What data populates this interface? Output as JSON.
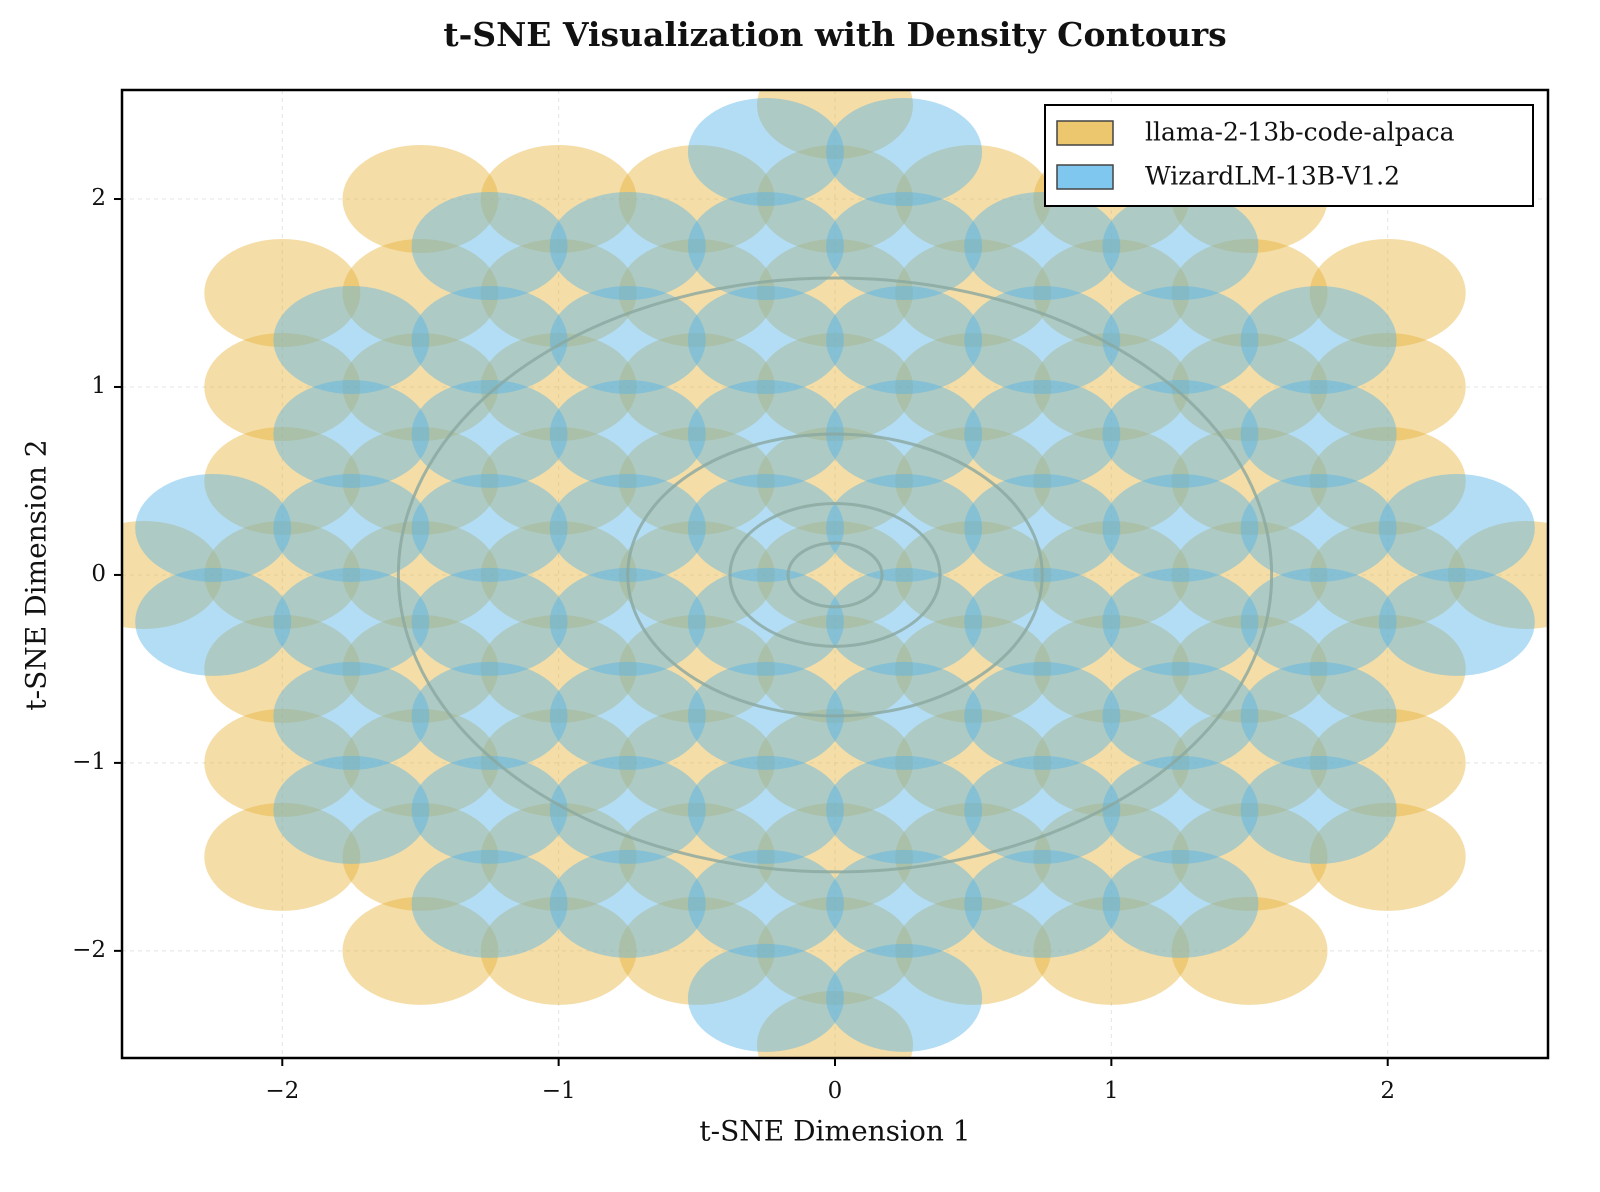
{
  "chart_data": {
    "type": "scatter",
    "title": "t-SNE Visualization with Density Contours",
    "xlabel": "t-SNE Dimension 1",
    "ylabel": "t-SNE Dimension 2",
    "xlim": [
      -2.58,
      2.58
    ],
    "ylim": [
      -2.57,
      2.58
    ],
    "xticks": [
      {
        "value": -2,
        "label": "−2"
      },
      {
        "value": -1,
        "label": "−1"
      },
      0,
      1,
      2
    ],
    "yticks": [
      {
        "value": -2,
        "label": "−2"
      },
      {
        "value": -1,
        "label": "−1"
      },
      0,
      1,
      2
    ],
    "grid": true,
    "legend": "upper right",
    "contour_color": "#8aa8a0",
    "contour_radii": [
      0.17,
      0.38,
      0.75,
      1.58
    ],
    "series": [
      {
        "name": "llama-2-13b-code-alpaca",
        "color": "#E6B43C",
        "x": [
          0,
          -1.5,
          -1,
          -0.5,
          0,
          0.5,
          1,
          1.5,
          -2,
          -1.5,
          -1,
          -0.5,
          0,
          0.5,
          1,
          1.5,
          2,
          -2,
          -1.5,
          -1,
          -0.5,
          0,
          0.5,
          1,
          1.5,
          2,
          -2,
          -1.5,
          -1,
          -0.5,
          0,
          0.5,
          1,
          1.5,
          2,
          -2.5,
          -2,
          -1.5,
          -1,
          -0.5,
          0,
          0.5,
          1,
          1.5,
          2,
          2.5,
          -2,
          -1.5,
          -1,
          -0.5,
          0,
          0.5,
          1,
          1.5,
          2,
          -2,
          -1.5,
          -1,
          -0.5,
          0,
          0.5,
          1,
          1.5,
          2,
          -2,
          -1.5,
          -1,
          -0.5,
          0,
          0.5,
          1,
          1.5,
          2,
          -1.5,
          -1,
          -0.5,
          0,
          0.5,
          1,
          1.5,
          0
        ],
        "y": [
          -2.5,
          -2,
          -2,
          -2,
          -2,
          -2,
          -2,
          -2,
          -1.5,
          -1.5,
          -1.5,
          -1.5,
          -1.5,
          -1.5,
          -1.5,
          -1.5,
          -1.5,
          -1,
          -1,
          -1,
          -1,
          -1,
          -1,
          -1,
          -1,
          -1,
          -0.5,
          -0.5,
          -0.5,
          -0.5,
          -0.5,
          -0.5,
          -0.5,
          -0.5,
          -0.5,
          0,
          0,
          0,
          0,
          0,
          0,
          0,
          0,
          0,
          0,
          0,
          0.5,
          0.5,
          0.5,
          0.5,
          0.5,
          0.5,
          0.5,
          0.5,
          0.5,
          1,
          1,
          1,
          1,
          1,
          1,
          1,
          1,
          1,
          1.5,
          1.5,
          1.5,
          1.5,
          1.5,
          1.5,
          1.5,
          1.5,
          1.5,
          2,
          2,
          2,
          2,
          2,
          2,
          2,
          2.5
        ]
      },
      {
        "name": "WizardLM-13B-V1.2",
        "color": "#56B4E9",
        "x": [
          -0.25,
          0.25,
          -1.25,
          -0.75,
          -0.25,
          0.25,
          0.75,
          1.25,
          -1.75,
          -1.25,
          -0.75,
          -0.25,
          0.25,
          0.75,
          1.25,
          1.75,
          -1.75,
          -1.25,
          -0.75,
          -0.25,
          0.25,
          0.75,
          1.25,
          1.75,
          -2.25,
          -1.75,
          -1.25,
          -0.75,
          -0.25,
          0.25,
          0.75,
          1.25,
          1.75,
          2.25,
          -2.25,
          -1.75,
          -1.25,
          -0.75,
          -0.25,
          0.25,
          0.75,
          1.25,
          1.75,
          2.25,
          -1.75,
          -1.25,
          -0.75,
          -0.25,
          0.25,
          0.75,
          1.25,
          1.75,
          -1.75,
          -1.25,
          -0.75,
          -0.25,
          0.25,
          0.75,
          1.25,
          1.75,
          -1.25,
          -0.75,
          -0.25,
          0.25,
          0.75,
          1.25,
          -0.25,
          0.25
        ],
        "y": [
          -2.25,
          -2.25,
          -1.75,
          -1.75,
          -1.75,
          -1.75,
          -1.75,
          -1.75,
          -1.25,
          -1.25,
          -1.25,
          -1.25,
          -1.25,
          -1.25,
          -1.25,
          -1.25,
          -0.75,
          -0.75,
          -0.75,
          -0.75,
          -0.75,
          -0.75,
          -0.75,
          -0.75,
          -0.25,
          -0.25,
          -0.25,
          -0.25,
          -0.25,
          -0.25,
          -0.25,
          -0.25,
          -0.25,
          -0.25,
          0.25,
          0.25,
          0.25,
          0.25,
          0.25,
          0.25,
          0.25,
          0.25,
          0.25,
          0.25,
          0.75,
          0.75,
          0.75,
          0.75,
          0.75,
          0.75,
          0.75,
          0.75,
          1.25,
          1.25,
          1.25,
          1.25,
          1.25,
          1.25,
          1.25,
          1.25,
          1.75,
          1.75,
          1.75,
          1.75,
          1.75,
          1.75,
          2.25,
          2.25
        ]
      }
    ]
  }
}
